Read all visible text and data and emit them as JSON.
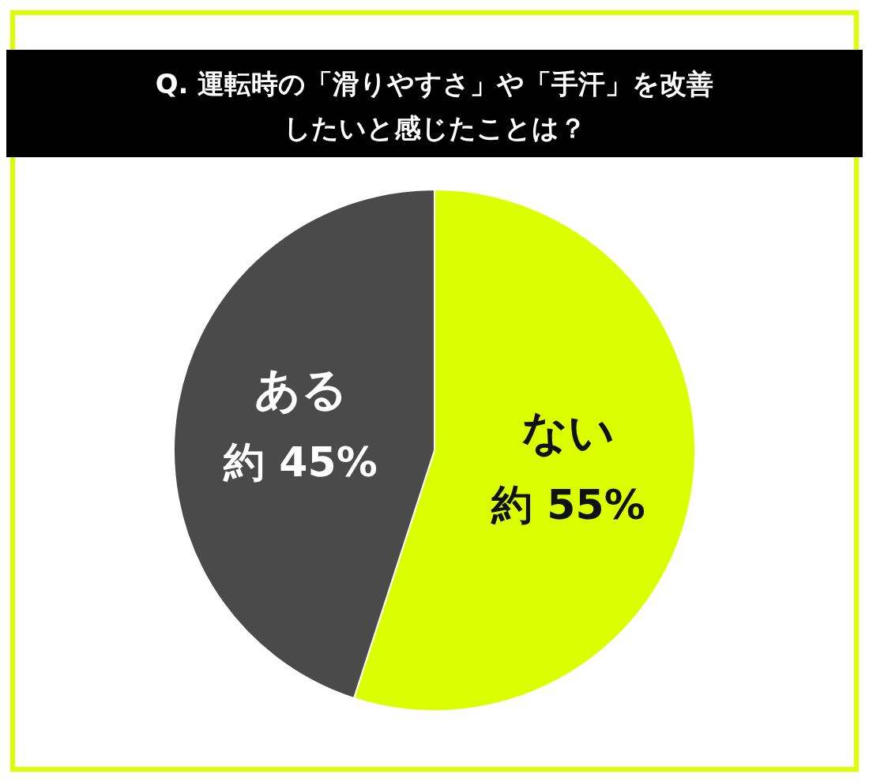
{
  "chart_data": {
    "type": "pie",
    "title": "Q. 運転時の「滑りやすさ」や「手汗」を改善したいと感じたことは？",
    "categories": [
      "ない",
      "ある"
    ],
    "values": [
      55,
      45
    ],
    "colors": [
      "#dcff00",
      "#4a4a4a"
    ],
    "value_labels": [
      "約 55%",
      "約 45%"
    ]
  }
}
